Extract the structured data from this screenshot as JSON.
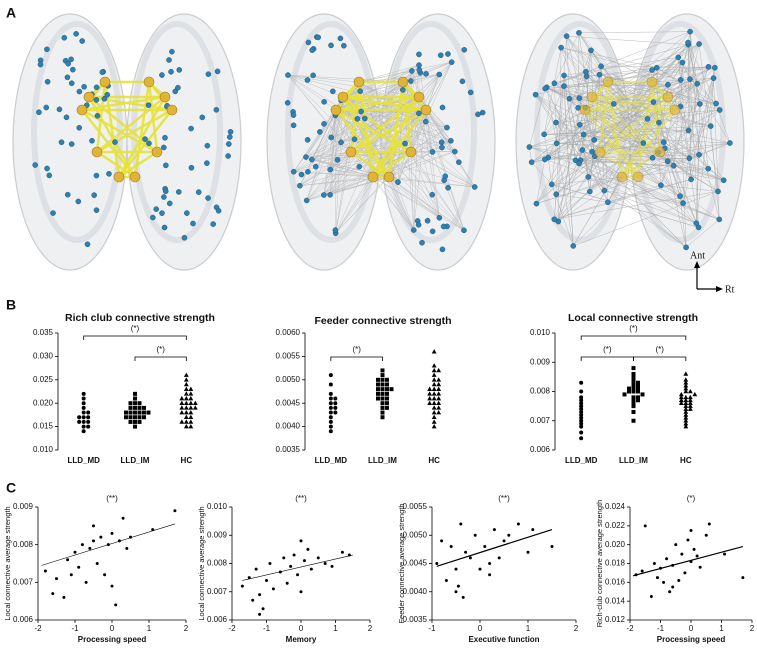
{
  "panel_labels": [
    "A",
    "B",
    "C"
  ],
  "orientation": {
    "ant": "Ant",
    "rt": "Rt"
  },
  "chart_data": [
    {
      "type": "strip",
      "title": "Rich club connective strength",
      "categories": [
        "LLD_MD",
        "LLD_IM",
        "HC"
      ],
      "markers": [
        "circle",
        "square",
        "triangle"
      ],
      "values": [
        [
          0.022,
          0.021,
          0.02,
          0.019,
          0.018,
          0.018,
          0.017,
          0.017,
          0.016,
          0.016,
          0.016,
          0.015,
          0.015,
          0.014,
          0.017
        ],
        [
          0.022,
          0.021,
          0.02,
          0.02,
          0.019,
          0.019,
          0.019,
          0.018,
          0.018,
          0.018,
          0.018,
          0.018,
          0.017,
          0.017,
          0.017,
          0.017,
          0.016,
          0.016,
          0.016,
          0.015,
          0.019,
          0.018,
          0.017,
          0.02
        ],
        [
          0.026,
          0.025,
          0.024,
          0.023,
          0.023,
          0.022,
          0.022,
          0.021,
          0.021,
          0.02,
          0.02,
          0.02,
          0.019,
          0.019,
          0.019,
          0.018,
          0.018,
          0.018,
          0.017,
          0.017,
          0.016,
          0.016,
          0.016,
          0.015,
          0.015,
          0.02,
          0.021,
          0.019
        ]
      ],
      "ylim": [
        0.01,
        0.035
      ],
      "yticks": [
        {
          "value": 0.01,
          "label": "0.010"
        },
        0.015,
        {
          "value": 0.02,
          "label": "0.020"
        },
        0.025,
        {
          "value": 0.03,
          "label": "0.030"
        },
        0.035
      ],
      "brackets": [
        {
          "from": "LLD_MD",
          "to": "HC",
          "label": "(*)"
        },
        {
          "from": "LLD_IM",
          "to": "HC",
          "label": "(*)"
        }
      ]
    },
    {
      "type": "strip",
      "title": "Feeder connective strength",
      "categories": [
        "LLD_MD",
        "LLD_IM",
        "HC"
      ],
      "markers": [
        "circle",
        "square",
        "triangle"
      ],
      "values": [
        [
          0.0051,
          0.0049,
          0.0047,
          0.0046,
          0.0045,
          0.0045,
          0.0044,
          0.0043,
          0.0043,
          0.0042,
          0.0041,
          0.004,
          0.0039,
          0.0044,
          0.0046
        ],
        [
          0.0052,
          0.0051,
          0.005,
          0.005,
          0.0049,
          0.0049,
          0.0049,
          0.0048,
          0.0048,
          0.0048,
          0.0047,
          0.0047,
          0.0047,
          0.0046,
          0.0046,
          0.0045,
          0.0045,
          0.0044,
          0.0044,
          0.0043,
          0.0042,
          0.0048,
          0.005,
          0.0046
        ],
        [
          0.0056,
          0.0053,
          0.0052,
          0.0052,
          0.0051,
          0.005,
          0.005,
          0.0049,
          0.0049,
          0.0048,
          0.0048,
          0.0047,
          0.0047,
          0.0046,
          0.0046,
          0.0045,
          0.0045,
          0.0045,
          0.0044,
          0.0044,
          0.0043,
          0.0043,
          0.0042,
          0.0041,
          0.004,
          0.0048,
          0.0046,
          0.0047
        ]
      ],
      "ylim": [
        0.0035,
        0.006
      ],
      "yticks": [
        0.0035,
        {
          "value": 0.004,
          "label": "0.0040"
        },
        0.0045,
        {
          "value": 0.005,
          "label": "0.0050"
        },
        0.0055,
        {
          "value": 0.006,
          "label": "0.0060"
        }
      ],
      "brackets": [
        {
          "from": "LLD_MD",
          "to": "LLD_IM",
          "label": "(*)"
        }
      ]
    },
    {
      "type": "strip",
      "title": "Local connective strength",
      "categories": [
        "LLD_MD",
        "LLD_IM",
        "HC"
      ],
      "markers": [
        "circle",
        "square",
        "triangle"
      ],
      "values": [
        [
          0.0083,
          0.008,
          0.0078,
          0.0077,
          0.0075,
          0.0074,
          0.0073,
          0.0072,
          0.0071,
          0.007,
          0.0069,
          0.0068,
          0.0066,
          0.0064,
          0.0076
        ],
        [
          0.0088,
          0.0086,
          0.0085,
          0.0084,
          0.0083,
          0.0082,
          0.0082,
          0.0081,
          0.0081,
          0.008,
          0.008,
          0.008,
          0.0079,
          0.0079,
          0.0078,
          0.0078,
          0.0077,
          0.0077,
          0.0076,
          0.0075,
          0.0073,
          0.007,
          0.0081,
          0.0083
        ],
        [
          0.0086,
          0.0084,
          0.0083,
          0.0082,
          0.0081,
          0.008,
          0.008,
          0.0079,
          0.0079,
          0.0078,
          0.0078,
          0.0077,
          0.0077,
          0.0076,
          0.0076,
          0.0075,
          0.0075,
          0.0074,
          0.0074,
          0.0073,
          0.0072,
          0.0071,
          0.007,
          0.0069,
          0.0068,
          0.0078,
          0.0077,
          0.0076
        ]
      ],
      "ylim": [
        0.006,
        0.01
      ],
      "yticks": [
        0.006,
        0.007,
        0.008,
        0.009,
        {
          "value": 0.01,
          "label": "0.010"
        }
      ],
      "brackets": [
        {
          "from": "LLD_MD",
          "to": "HC",
          "label": "(*)"
        },
        {
          "from": "LLD_MD",
          "to": "LLD_IM",
          "label": "(*)"
        },
        {
          "from": "LLD_IM",
          "to": "HC",
          "label": "(*)"
        }
      ]
    },
    {
      "type": "scatter",
      "annotation": "(**)",
      "xlabel": "Processing speed",
      "ylabel": "Local connective average strength",
      "x": [
        -1.8,
        -1.6,
        -1.5,
        -1.3,
        -1.2,
        -1.1,
        -1.0,
        -0.9,
        -0.8,
        -0.7,
        -0.6,
        -0.5,
        -0.4,
        -0.3,
        -0.2,
        -0.1,
        0.0,
        0.1,
        0.2,
        0.3,
        0.4,
        0.5,
        1.1,
        1.7,
        -0.5,
        0.0
      ],
      "y": [
        0.0073,
        0.0067,
        0.0071,
        0.0066,
        0.0076,
        0.0072,
        0.0078,
        0.0074,
        0.008,
        0.007,
        0.0079,
        0.0081,
        0.0075,
        0.0082,
        0.0072,
        0.008,
        0.0083,
        0.0064,
        0.0081,
        0.0087,
        0.0079,
        0.0082,
        0.0084,
        0.0089,
        0.0085,
        0.0069
      ],
      "xlim": [
        -2,
        2
      ],
      "xticks": [
        -2,
        -1,
        0,
        1,
        2
      ],
      "ylim": [
        0.006,
        0.009
      ],
      "yticks": [
        0.006,
        0.007,
        0.008,
        0.009
      ],
      "fit": {
        "x": [
          -1.9,
          1.7
        ],
        "y": [
          0.00745,
          0.00855
        ]
      }
    },
    {
      "type": "scatter",
      "annotation": "(**)",
      "xlabel": "Memory",
      "ylabel": "Local connective average strength",
      "x": [
        -1.7,
        -1.5,
        -1.4,
        -1.3,
        -1.2,
        -1.1,
        -1.0,
        -0.9,
        -0.8,
        -0.6,
        -0.5,
        -0.4,
        -0.3,
        -0.2,
        -0.1,
        0.0,
        0.1,
        0.2,
        0.3,
        0.5,
        0.7,
        0.9,
        1.2,
        1.4,
        -1.2,
        0.0
      ],
      "y": [
        0.0072,
        0.0075,
        0.0067,
        0.0078,
        0.0069,
        0.0064,
        0.0074,
        0.008,
        0.0071,
        0.0077,
        0.0082,
        0.0073,
        0.0079,
        0.0083,
        0.0076,
        0.0088,
        0.0081,
        0.0085,
        0.0078,
        0.0082,
        0.008,
        0.0079,
        0.0084,
        0.0083,
        0.0062,
        0.007
      ],
      "xlim": [
        -2,
        2
      ],
      "xticks": [
        -2,
        -1,
        0,
        1,
        2
      ],
      "ylim": [
        0.006,
        0.01
      ],
      "yticks": [
        0.006,
        0.007,
        0.008,
        0.009,
        {
          "value": 0.01,
          "label": "0.010"
        }
      ],
      "fit": {
        "x": [
          -1.7,
          1.5
        ],
        "y": [
          0.0074,
          0.0083
        ]
      }
    },
    {
      "type": "scatter",
      "annotation": "(**)",
      "xlabel": "Executive function",
      "ylabel": "Feeder connective average strength",
      "x": [
        -0.9,
        -0.8,
        -0.7,
        -0.6,
        -0.5,
        -0.45,
        -0.4,
        -0.35,
        -0.3,
        -0.2,
        -0.1,
        0.0,
        0.1,
        0.2,
        0.3,
        0.4,
        0.5,
        0.6,
        0.8,
        1.0,
        1.1,
        1.5,
        -0.5,
        0.2
      ],
      "y": [
        0.0045,
        0.0049,
        0.0042,
        0.0048,
        0.0044,
        0.0041,
        0.0052,
        0.0039,
        0.0047,
        0.0046,
        0.005,
        0.0044,
        0.0048,
        0.0043,
        0.0051,
        0.0046,
        0.0049,
        0.005,
        0.0052,
        0.0047,
        0.0051,
        0.0048,
        0.004,
        0.0045
      ],
      "xlim": [
        -1,
        2
      ],
      "xticks": [
        -1,
        0,
        1,
        2
      ],
      "ylim": [
        0.0035,
        0.0055
      ],
      "yticks": [
        0.0035,
        {
          "value": 0.004,
          "label": "0.0040"
        },
        0.0045,
        {
          "value": 0.005,
          "label": "0.0050"
        },
        0.0055
      ],
      "fit": {
        "x": [
          -0.9,
          1.5
        ],
        "y": [
          0.00445,
          0.0051
        ]
      }
    },
    {
      "type": "scatter",
      "annotation": "(*)",
      "xlabel": "Processing speed",
      "ylabel": "Rich-club connective average strength",
      "x": [
        -1.8,
        -1.6,
        -1.5,
        -1.3,
        -1.2,
        -1.1,
        -1.0,
        -0.9,
        -0.8,
        -0.7,
        -0.6,
        -0.5,
        -0.4,
        -0.3,
        -0.2,
        -0.1,
        0.0,
        0.1,
        0.2,
        0.3,
        0.5,
        0.6,
        1.1,
        1.7,
        -0.6,
        0.0
      ],
      "y": [
        0.0168,
        0.0172,
        0.022,
        0.0145,
        0.018,
        0.0165,
        0.0175,
        0.016,
        0.0185,
        0.015,
        0.0178,
        0.02,
        0.0162,
        0.019,
        0.017,
        0.0205,
        0.0182,
        0.0195,
        0.0188,
        0.0176,
        0.021,
        0.0222,
        0.019,
        0.0165,
        0.0155,
        0.0215
      ],
      "xlim": [
        -2,
        2
      ],
      "xticks": [
        -2,
        -1,
        0,
        1,
        2
      ],
      "ylim": [
        0.012,
        0.024
      ],
      "yticks": [
        0.012,
        0.014,
        0.016,
        0.018,
        {
          "value": 0.02,
          "label": "0.020"
        },
        0.022,
        0.024
      ],
      "fit": {
        "x": [
          -1.9,
          1.7
        ],
        "y": [
          0.0167,
          0.0198
        ]
      }
    }
  ]
}
